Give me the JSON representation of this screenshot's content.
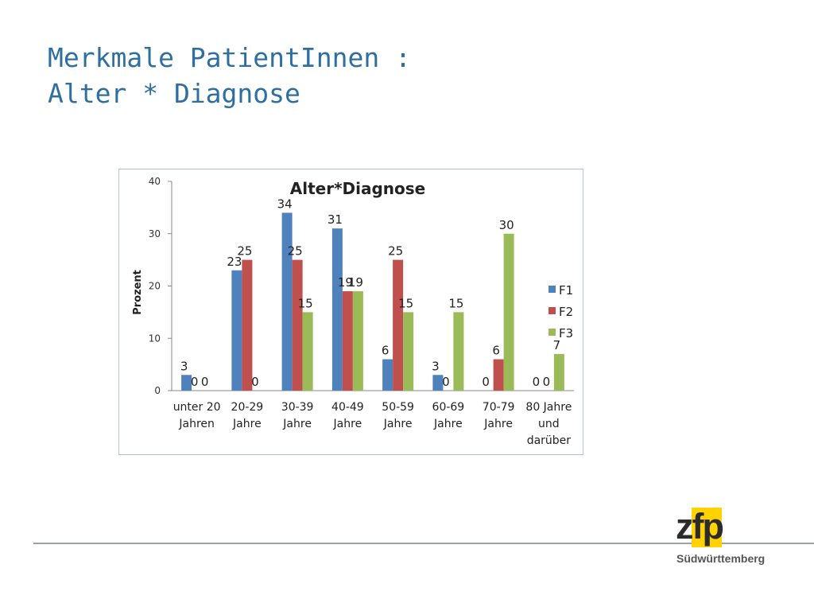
{
  "slide": {
    "title_line1": "Merkmale PatientInnen :",
    "title_line2": "Alter * Diagnose"
  },
  "logo": {
    "wordmark": "zfp",
    "subtitle": "Südwürttemberg"
  },
  "colors": {
    "title": "#2f6f9f",
    "F1": "#4f81bd",
    "F2": "#c0504d",
    "F3": "#9bbb59",
    "logo_yellow": "#ffd200"
  },
  "chart_data": {
    "type": "bar",
    "title": "Alter*Diagnose",
    "ylabel": "Prozent",
    "xlabel": "",
    "ylim": [
      0,
      40
    ],
    "yticks": [
      0,
      10,
      20,
      30,
      40
    ],
    "grid": false,
    "legend_position": "right",
    "categories": [
      [
        "unter 20",
        "Jahren"
      ],
      [
        "20-29",
        "Jahre"
      ],
      [
        "30-39",
        "Jahre"
      ],
      [
        "40-49",
        "Jahre"
      ],
      [
        "50-59",
        "Jahre"
      ],
      [
        "60-69",
        "Jahre"
      ],
      [
        "70-79",
        "Jahre"
      ],
      [
        "80 Jahre",
        "und",
        "darüber"
      ]
    ],
    "series": [
      {
        "name": "F1",
        "values": [
          3,
          23,
          34,
          31,
          6,
          3,
          0,
          0
        ]
      },
      {
        "name": "F2",
        "values": [
          0,
          25,
          25,
          19,
          25,
          0,
          6,
          0
        ]
      },
      {
        "name": "F3",
        "values": [
          0,
          0,
          15,
          19,
          15,
          15,
          30,
          7
        ]
      }
    ]
  }
}
